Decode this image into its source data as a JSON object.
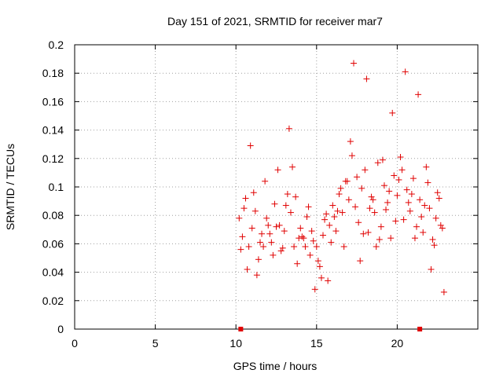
{
  "chart_data": {
    "type": "scatter",
    "title": "Day 151 of 2021, SRMTID for receiver mar7",
    "xlabel": "GPS time / hours",
    "ylabel": "SRMTID / TECUs",
    "xlim": [
      0,
      25
    ],
    "ylim": [
      0,
      0.2
    ],
    "xticks": [
      0,
      5,
      10,
      15,
      20
    ],
    "xtick_labels": [
      "0",
      "5",
      "10",
      "15",
      "20"
    ],
    "yticks": [
      0,
      0.02,
      0.04,
      0.06,
      0.08,
      0.1,
      0.12,
      0.14,
      0.16,
      0.18,
      0.2
    ],
    "ytick_labels": [
      "0",
      "0.02",
      "0.04",
      "0.06",
      "0.08",
      "0.1",
      "0.12",
      "0.14",
      "0.16",
      "0.18",
      "0.2"
    ],
    "grid": true,
    "marker": "+",
    "color": "#e00000",
    "series": [
      {
        "name": "SRMTID",
        "x": [
          10.2,
          10.4,
          10.6,
          10.8,
          11.0,
          11.2,
          11.4,
          11.6,
          11.8,
          12.0,
          12.2,
          12.4,
          12.6,
          12.8,
          13.0,
          13.2,
          13.4,
          13.6,
          13.8,
          14.0,
          14.2,
          14.4,
          14.6,
          14.8,
          15.0,
          15.2,
          15.4,
          15.6,
          15.8,
          16.0,
          16.2,
          16.4,
          16.6,
          16.8,
          17.0,
          17.2,
          17.4,
          17.6,
          17.8,
          18.0,
          18.2,
          18.4,
          18.6,
          18.8,
          19.0,
          19.2,
          19.4,
          19.6,
          19.8,
          20.0,
          20.2,
          20.4,
          20.6,
          20.8,
          21.0,
          21.2,
          21.4,
          21.6,
          21.8,
          22.0,
          22.2,
          22.4,
          22.6,
          22.8,
          10.3,
          10.7,
          11.1,
          11.5,
          11.9,
          12.3,
          12.7,
          13.1,
          13.5,
          13.9,
          14.3,
          14.7,
          15.1,
          15.5,
          15.9,
          16.3,
          16.7,
          17.1,
          17.5,
          17.9,
          18.3,
          18.7,
          19.1,
          19.5,
          19.9,
          20.3,
          20.7,
          21.1,
          21.5,
          21.9,
          22.3,
          22.7,
          10.5,
          11.3,
          12.1,
          12.9,
          13.7,
          14.5,
          15.3,
          16.1,
          16.9,
          17.7,
          18.5,
          19.3,
          20.1,
          20.9,
          21.7,
          22.5,
          10.9,
          12.5,
          14.1,
          15.7,
          17.3,
          18.9,
          20.5,
          22.1,
          11.7,
          13.3,
          14.9,
          16.5,
          18.1,
          19.7,
          21.3,
          22.9
        ],
        "y": [
          0.078,
          0.065,
          0.092,
          0.058,
          0.071,
          0.083,
          0.049,
          0.067,
          0.104,
          0.073,
          0.061,
          0.088,
          0.112,
          0.055,
          0.069,
          0.095,
          0.082,
          0.058,
          0.046,
          0.071,
          0.064,
          0.079,
          0.052,
          0.062,
          0.058,
          0.044,
          0.066,
          0.081,
          0.073,
          0.087,
          0.069,
          0.095,
          0.082,
          0.104,
          0.091,
          0.122,
          0.086,
          0.075,
          0.099,
          0.112,
          0.068,
          0.093,
          0.082,
          0.117,
          0.072,
          0.101,
          0.089,
          0.064,
          0.108,
          0.094,
          0.121,
          0.077,
          0.098,
          0.083,
          0.106,
          0.072,
          0.091,
          0.068,
          0.114,
          0.085,
          0.063,
          0.078,
          0.092,
          0.071,
          0.056,
          0.042,
          0.096,
          0.061,
          0.078,
          0.052,
          0.073,
          0.087,
          0.114,
          0.064,
          0.058,
          0.069,
          0.048,
          0.077,
          0.061,
          0.083,
          0.058,
          0.132,
          0.107,
          0.067,
          0.085,
          0.058,
          0.119,
          0.097,
          0.076,
          0.112,
          0.089,
          0.064,
          0.079,
          0.103,
          0.059,
          0.073,
          0.085,
          0.038,
          0.067,
          0.057,
          0.093,
          0.086,
          0.036,
          0.079,
          0.104,
          0.048,
          0.091,
          0.084,
          0.105,
          0.095,
          0.087,
          0.096,
          0.129,
          0.072,
          0.065,
          0.034,
          0.187,
          0.063,
          0.181,
          0.042,
          0.058,
          0.141,
          0.028,
          0.099,
          0.176,
          0.152,
          0.165,
          0.026
        ]
      }
    ],
    "x_axis_markers": [
      10.3,
      21.4
    ]
  }
}
